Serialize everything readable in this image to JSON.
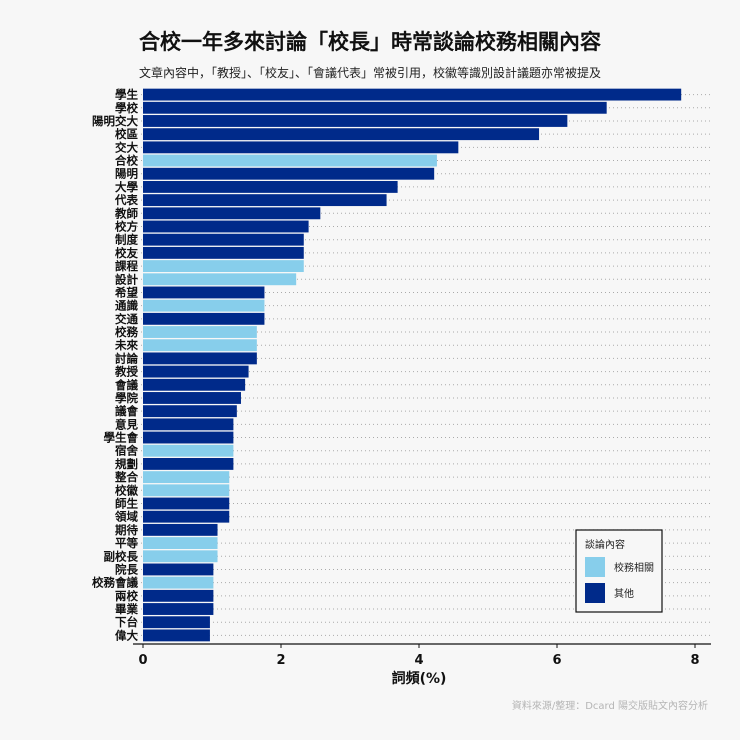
{
  "header": {
    "title": "合校一年多來討論「校長」時常談論校務相關內容",
    "subtitle": "文章內容中，「教授」、「校友」、「會議代表」常被引用，校徽等識別設計議題亦常被提及",
    "caption": "資料來源/整理：Dcard 陽交版貼文內容分析"
  },
  "chart_data": {
    "type": "bar",
    "orientation": "horizontal",
    "title": "",
    "xlabel": "詞頻(%)",
    "ylabel": "",
    "xlim": [
      0,
      8
    ],
    "xticks": [
      "0",
      "2",
      "4",
      "6",
      "8"
    ],
    "grid": "dotted horizontal",
    "legend": {
      "title": "談論內容",
      "position": "bottom-right",
      "entries": [
        {
          "label": "校務相關",
          "color": "#87ceeb"
        },
        {
          "label": "其他",
          "color": "#002a8a"
        }
      ]
    },
    "categories": [
      "學生",
      "學校",
      "陽明交大",
      "校區",
      "交大",
      "合校",
      "陽明",
      "大學",
      "代表",
      "教師",
      "校方",
      "制度",
      "校友",
      "課程",
      "設計",
      "希望",
      "通識",
      "交通",
      "校務",
      "未來",
      "討論",
      "教授",
      "會議",
      "學院",
      "議會",
      "意見",
      "學生會",
      "宿舍",
      "規劃",
      "整合",
      "校徽",
      "師生",
      "領域",
      "期待",
      "平等",
      "副校長",
      "院長",
      "校務會議",
      "兩校",
      "畢業",
      "下台",
      "偉大"
    ],
    "values": [
      7.8,
      6.72,
      6.15,
      5.74,
      4.57,
      4.26,
      4.22,
      3.69,
      3.53,
      2.57,
      2.4,
      2.33,
      2.33,
      2.33,
      2.22,
      1.76,
      1.76,
      1.76,
      1.65,
      1.65,
      1.65,
      1.53,
      1.48,
      1.42,
      1.36,
      1.31,
      1.31,
      1.31,
      1.31,
      1.25,
      1.25,
      1.25,
      1.25,
      1.08,
      1.08,
      1.08,
      1.02,
      1.02,
      1.02,
      1.02,
      0.97,
      0.97
    ],
    "groups": [
      "其他",
      "其他",
      "其他",
      "其他",
      "其他",
      "校務相關",
      "其他",
      "其他",
      "其他",
      "其他",
      "其他",
      "其他",
      "其他",
      "校務相關",
      "校務相關",
      "其他",
      "校務相關",
      "其他",
      "校務相關",
      "校務相關",
      "其他",
      "其他",
      "其他",
      "其他",
      "其他",
      "其他",
      "其他",
      "校務相關",
      "其他",
      "校務相關",
      "校務相關",
      "其他",
      "其他",
      "其他",
      "校務相關",
      "校務相關",
      "其他",
      "校務相關",
      "其他",
      "其他",
      "其他",
      "其他"
    ]
  }
}
